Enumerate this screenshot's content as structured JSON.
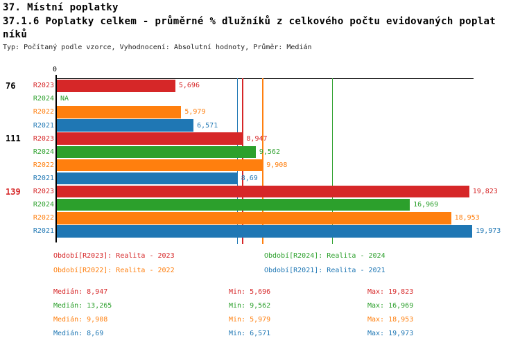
{
  "header": {
    "title_line1": "37. Místní poplatky",
    "title_line2": "37.1.6 Poplatky celkem - průměrné % dlužníků z celkového počtu evidovaných poplat",
    "title_line3": "níků",
    "meta": "Typ: Počítaný podle vzorce, Vyhodnocení: Absolutní hodnoty, Průměr: Medián"
  },
  "colors": {
    "R2023": "#d62728",
    "R2024": "#2ca02c",
    "R2022": "#ff7f0e",
    "R2021": "#1f77b4",
    "axis": "#000000",
    "group_label_default": "#000000",
    "group_label_highlight": "#d62728"
  },
  "chart_data": {
    "type": "bar",
    "orientation": "horizontal",
    "title": "37.1.6 Poplatky celkem - průměrné % dlužníků z celkového počtu evidovaných poplatníků",
    "axis_zero_label": "0",
    "xlim": [
      0,
      20
    ],
    "series_order": [
      "R2023",
      "R2024",
      "R2022",
      "R2021"
    ],
    "groups": [
      {
        "label": "76",
        "highlight": false,
        "bars": [
          {
            "series": "R2023",
            "value": 5.696,
            "label": "5,696"
          },
          {
            "series": "R2024",
            "value": null,
            "label": "NA"
          },
          {
            "series": "R2022",
            "value": 5.979,
            "label": "5,979"
          },
          {
            "series": "R2021",
            "value": 6.571,
            "label": "6,571"
          }
        ]
      },
      {
        "label": "111",
        "highlight": false,
        "bars": [
          {
            "series": "R2023",
            "value": 8.947,
            "label": "8,947"
          },
          {
            "series": "R2024",
            "value": 9.562,
            "label": "9,562"
          },
          {
            "series": "R2022",
            "value": 9.908,
            "label": "9,908"
          },
          {
            "series": "R2021",
            "value": 8.69,
            "label": "8,69"
          }
        ]
      },
      {
        "label": "139",
        "highlight": true,
        "bars": [
          {
            "series": "R2023",
            "value": 19.823,
            "label": "19,823"
          },
          {
            "series": "R2024",
            "value": 16.969,
            "label": "16,969"
          },
          {
            "series": "R2022",
            "value": 18.953,
            "label": "18,953"
          },
          {
            "series": "R2021",
            "value": 19.973,
            "label": "19,973"
          }
        ]
      }
    ],
    "median_lines": [
      {
        "series": "R2023",
        "value": 8.947
      },
      {
        "series": "R2024",
        "value": 13.265
      },
      {
        "series": "R2022",
        "value": 9.908
      },
      {
        "series": "R2021",
        "value": 8.69
      }
    ],
    "legend": [
      {
        "series": "R2023",
        "text": "Období[R2023]: Realita - 2023"
      },
      {
        "series": "R2024",
        "text": "Období[R2024]: Realita - 2024"
      },
      {
        "series": "R2022",
        "text": "Období[R2022]: Realita - 2022"
      },
      {
        "series": "R2021",
        "text": "Období[R2021]: Realita - 2021"
      }
    ],
    "stats": [
      {
        "series": "R2023",
        "median": "Medián: 8,947",
        "min": "Min: 5,696",
        "max": "Max: 19,823"
      },
      {
        "series": "R2024",
        "median": "Medián: 13,265",
        "min": "Min: 9,562",
        "max": "Max: 16,969"
      },
      {
        "series": "R2022",
        "median": "Medián: 9,908",
        "min": "Min: 5,979",
        "max": "Max: 18,953"
      },
      {
        "series": "R2021",
        "median": "Medián: 8,69",
        "min": "Min: 6,571",
        "max": "Max: 19,973"
      }
    ]
  }
}
